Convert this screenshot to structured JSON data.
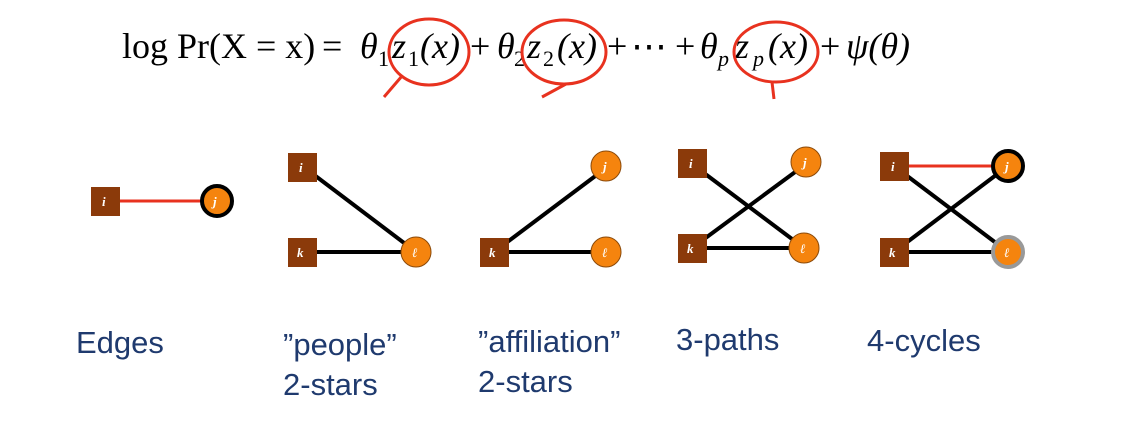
{
  "formula": {
    "lhs": "log Pr(X = x)",
    "eq": "=",
    "terms": [
      {
        "coef": "θ",
        "coef_sub": "1",
        "stat": "z",
        "stat_sub": "1",
        "arg": "(x)"
      },
      {
        "coef": "θ",
        "coef_sub": "2",
        "stat": "z",
        "stat_sub": "2",
        "arg": "(x)"
      },
      {
        "coef": "θ",
        "coef_sub": "p",
        "stat": "z",
        "stat_sub": "p",
        "arg": "(x)"
      }
    ],
    "plus": "+",
    "ellipsis": "⋯",
    "normalizer": "ψ(θ)",
    "highlight_color": "#e8321f"
  },
  "colors": {
    "square_node": "#8b3a0a",
    "circle_node": "#f5840e",
    "edge_black": "#000000",
    "edge_red": "#e8321f",
    "circle_border_bold": "#000000",
    "circle_border_grey": "#999999",
    "caption": "#1f3a6e"
  },
  "panels": [
    {
      "id": "edges",
      "caption_lines": [
        "Edges"
      ],
      "nodes": [
        {
          "label": "i",
          "shape": "square"
        },
        {
          "label": "j",
          "shape": "circle",
          "border": "bold"
        }
      ],
      "edges": [
        {
          "from": "i",
          "to": "j",
          "color": "red"
        }
      ]
    },
    {
      "id": "people-2-stars",
      "caption_lines": [
        "”people”",
        "2-stars"
      ],
      "nodes": [
        {
          "label": "i",
          "shape": "square"
        },
        {
          "label": "k",
          "shape": "square"
        },
        {
          "label": "ℓ",
          "shape": "circle"
        }
      ],
      "edges": [
        {
          "from": "i",
          "to": "ℓ",
          "color": "black"
        },
        {
          "from": "k",
          "to": "ℓ",
          "color": "black"
        }
      ]
    },
    {
      "id": "affiliation-2-stars",
      "caption_lines": [
        "”affiliation”",
        "2-stars"
      ],
      "nodes": [
        {
          "label": "j",
          "shape": "circle"
        },
        {
          "label": "k",
          "shape": "square"
        },
        {
          "label": "ℓ",
          "shape": "circle"
        }
      ],
      "edges": [
        {
          "from": "k",
          "to": "j",
          "color": "black"
        },
        {
          "from": "k",
          "to": "ℓ",
          "color": "black"
        }
      ]
    },
    {
      "id": "3-paths",
      "caption_lines": [
        "3-paths"
      ],
      "nodes": [
        {
          "label": "i",
          "shape": "square"
        },
        {
          "label": "j",
          "shape": "circle"
        },
        {
          "label": "k",
          "shape": "square"
        },
        {
          "label": "ℓ",
          "shape": "circle"
        }
      ],
      "edges": [
        {
          "from": "i",
          "to": "ℓ",
          "color": "black"
        },
        {
          "from": "k",
          "to": "j",
          "color": "black"
        },
        {
          "from": "k",
          "to": "ℓ",
          "color": "black"
        }
      ]
    },
    {
      "id": "4-cycles",
      "caption_lines": [
        "4-cycles"
      ],
      "nodes": [
        {
          "label": "i",
          "shape": "square"
        },
        {
          "label": "j",
          "shape": "circle",
          "border": "bold"
        },
        {
          "label": "k",
          "shape": "square"
        },
        {
          "label": "ℓ",
          "shape": "circle",
          "border": "grey"
        }
      ],
      "edges": [
        {
          "from": "i",
          "to": "j",
          "color": "red"
        },
        {
          "from": "i",
          "to": "ℓ",
          "color": "black"
        },
        {
          "from": "k",
          "to": "j",
          "color": "black"
        },
        {
          "from": "k",
          "to": "ℓ",
          "color": "black"
        }
      ]
    }
  ]
}
